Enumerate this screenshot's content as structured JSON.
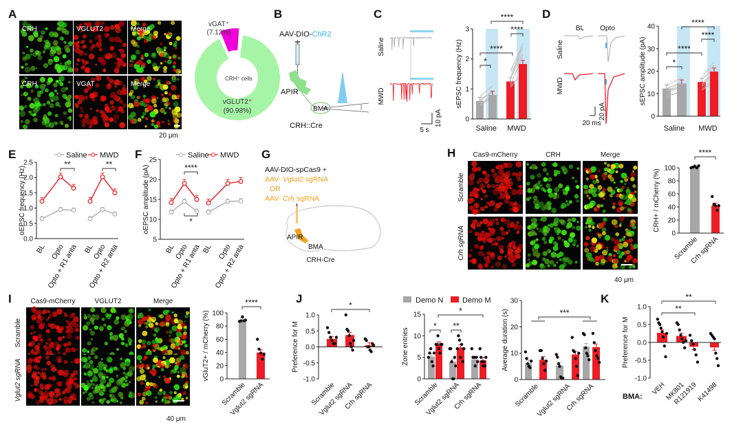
{
  "figure": {
    "panel_labels": [
      "A",
      "B",
      "C",
      "D",
      "E",
      "F",
      "G",
      "H",
      "I",
      "J",
      "K"
    ],
    "A": {
      "image_labels": [
        "CRH",
        "VGLUT2",
        "Merge",
        "CRH",
        "VGAT",
        "Merge"
      ],
      "scale_bar": "20 μm"
    },
    "B": {
      "virus_prefix": "AAV-DIO-",
      "virus_name": "ChR2",
      "region1": "APIR",
      "region2": "BMA",
      "mouse": "CRH::Cre"
    },
    "C": {
      "traces": [
        "Saline",
        "MWD"
      ],
      "scale_y": "10 pA",
      "scale_x": "5 s"
    },
    "D": {
      "conditions": [
        "BL",
        "Opto"
      ],
      "traces": [
        "Saline",
        "MWD"
      ],
      "scale_y": "20 pA",
      "scale_x": "20 ms"
    },
    "G": {
      "line1": "AAV-DIO-spCas9 +",
      "line2_prefix": "AAV- ",
      "line2_gene": "Vglut2",
      "line2_suffix": " sgRNA",
      "line3": "OR",
      "line4_prefix": "AAV- ",
      "line4_gene": "Crh",
      "line4_suffix": " sgRNA",
      "region1": "APIR",
      "region2": "BMA",
      "mouse": "CRH-Cre"
    },
    "H": {
      "col_labels": [
        "Cas9-mCherry",
        "CRH",
        "Merge"
      ],
      "row_labels": [
        "Scramble",
        "Crh sgRNA"
      ],
      "scale_bar": "40 μm"
    },
    "I": {
      "col_labels": [
        "Cas9-mCherry",
        "VGLUT2",
        "Merge"
      ],
      "row_labels": [
        "Scramble",
        "Vglut2 sgRNA"
      ],
      "scale_bar": "40 μm"
    },
    "K": {
      "x_prefix": "BMA:"
    }
  },
  "colors": {
    "gray": "#a7a7a9",
    "red": "#ee1c25",
    "opto_shade": "#c6e6f4",
    "chr2_blue": "#3bb4e5",
    "saline_line": "#b3b3b3",
    "mwd_line": "#e8262b",
    "vgat": "#f000d8",
    "vglut2": "#a6f5a6",
    "sgRNA_orange": "#f2a01e"
  },
  "chart_data": [
    {
      "panel": "A",
      "type": "pie",
      "center_label": "CRH⁺ cells",
      "slices": [
        {
          "label": "vGAT⁺",
          "percent_text": "(7.12%)",
          "value": 7.12
        },
        {
          "label": "vGLUT2⁺",
          "percent_text": "(90.98%)",
          "value": 90.98
        }
      ]
    },
    {
      "panel": "C",
      "type": "bar",
      "ylabel": "sEPSC frequency (Hz)",
      "categories": [
        "Saline",
        "MWD"
      ],
      "series": [
        {
          "name": "BL",
          "values": [
            0.6,
            1.25
          ]
        },
        {
          "name": "Opto",
          "values": [
            0.8,
            1.83
          ]
        }
      ],
      "ylim": [
        0,
        3
      ],
      "yticks": [
        "0",
        "1",
        "2",
        "3"
      ],
      "significance": [
        "*",
        "****",
        "****",
        "****"
      ]
    },
    {
      "panel": "D",
      "type": "bar",
      "ylabel": "sEPSC amplitude (pA)",
      "categories": [
        "Saline",
        "MWD"
      ],
      "series": [
        {
          "name": "BL",
          "values": [
            12.3,
            15.2
          ]
        },
        {
          "name": "Opto",
          "values": [
            14.5,
            19.8
          ]
        }
      ],
      "ylim": [
        0,
        40
      ],
      "yticks": [
        "0",
        "10",
        "20",
        "30",
        "40"
      ],
      "significance": [
        "*",
        "****",
        "****",
        "****"
      ]
    },
    {
      "panel": "E",
      "type": "line",
      "ylabel": "oEPSC frequency (Hz)",
      "categories": [
        "BL",
        "Opto",
        "Opto + R1 anta",
        "BL",
        "Opto",
        "Opto + R2 anta"
      ],
      "series": [
        {
          "name": "Saline",
          "values": [
            0.65,
            0.95,
            0.93,
            0.65,
            0.95,
            0.8
          ]
        },
        {
          "name": "MWD",
          "values": [
            1.22,
            2.02,
            1.65,
            1.22,
            2.02,
            1.5
          ]
        }
      ],
      "ylim": [
        0,
        2.5
      ],
      "yticks": [
        "0.0",
        "0.5",
        "1.0",
        "1.5",
        "2.0",
        "2.5"
      ],
      "significance": [
        "**",
        "**"
      ]
    },
    {
      "panel": "F",
      "type": "line",
      "ylabel": "oEPSC amplitude (pA)",
      "categories": [
        "BL",
        "Opto",
        "Opto + R1 anta",
        "BL",
        "Opto",
        "Opto + R2 anta"
      ],
      "series": [
        {
          "name": "Saline",
          "values": [
            11.8,
            14.5,
            12.0,
            11.8,
            14.5,
            14.6
          ]
        },
        {
          "name": "MWD",
          "values": [
            14.2,
            19.0,
            15.0,
            14.1,
            19.0,
            19.5
          ]
        }
      ],
      "ylim": [
        5,
        25
      ],
      "yticks": [
        "5",
        "10",
        "15",
        "20",
        "25"
      ],
      "significance": [
        "****",
        "*"
      ]
    },
    {
      "panel": "H",
      "type": "bar",
      "ylabel": "CRH+ / mCherry (%)",
      "categories": [
        "Scramble",
        "Crh sgRNA"
      ],
      "series": [
        {
          "name": "",
          "values": [
            101,
            42
          ],
          "points": [
            [
              100,
              101,
              102,
              100,
              103
            ],
            [
              56,
              44,
              42,
              35,
              42
            ]
          ]
        }
      ],
      "ylim": [
        0,
        100
      ],
      "yticks": [
        "0",
        "20",
        "40",
        "60",
        "80",
        "100"
      ],
      "significance": [
        "****"
      ]
    },
    {
      "panel": "I",
      "type": "bar",
      "ylabel": "vGluT2+ / mCherry (%)",
      "categories": [
        "Scramble",
        "Vglut2 sgRNA"
      ],
      "series": [
        {
          "name": "",
          "values": [
            88,
            40
          ],
          "points": [
            [
              87,
              88,
              94,
              88,
              89
            ],
            [
              60,
              45,
              39,
              30,
              37
            ]
          ]
        }
      ],
      "ylim": [
        0,
        100
      ],
      "yticks": [
        "0",
        "20",
        "40",
        "60",
        "80",
        "100"
      ],
      "significance": [
        "****"
      ]
    },
    {
      "panel": "J",
      "type": "bar",
      "ylabel": "Preference for M",
      "categories": [
        "Scramble",
        "Vglut2 sgRNA",
        "Crh sgRNA"
      ],
      "series": [
        {
          "name": "",
          "values": [
            0.25,
            0.37,
            0.05
          ],
          "points": [
            [
              0.6,
              0.45,
              0.3,
              0.2,
              0.1,
              0.1,
              0.3
            ],
            [
              1.0,
              0.55,
              0.5,
              0.35,
              0.1,
              0.0,
              -0.1,
              0.2
            ],
            [
              0.25,
              0.2,
              0.0,
              0.0,
              -0.1,
              -0.15,
              0.1,
              0.05
            ]
          ]
        }
      ],
      "ylim": [
        -1,
        1
      ],
      "yticks": [
        "-1.0",
        "-0.5",
        "0.0",
        "0.5",
        "1.0"
      ],
      "significance": [
        "*"
      ]
    },
    {
      "panel": "J",
      "type": "bar",
      "ylabel": "Zone entries",
      "categories": [
        "Scramble",
        "Vglut2 sgRNA",
        "Crh sgRNA"
      ],
      "series": [
        {
          "name": "Demo N",
          "values": [
            5.2,
            4.0,
            4.5
          ],
          "points": [
            [
              5,
              6,
              7,
              4,
              3,
              6
            ],
            [
              7,
              7,
              4,
              0,
              0,
              5,
              3
            ],
            [
              7,
              5,
              5,
              3,
              5,
              4
            ]
          ]
        },
        {
          "name": "Demo M",
          "values": [
            8.0,
            7.3,
            4.3
          ],
          "points": [
            [
              8,
              8,
              10,
              7,
              6,
              8,
              8
            ],
            [
              7,
              10,
              9,
              5,
              8,
              4,
              7
            ],
            [
              7,
              5,
              4,
              3,
              4,
              3,
              5
            ]
          ]
        }
      ],
      "ylim": [
        0,
        15
      ],
      "yticks": [
        "0",
        "5",
        "10",
        "15"
      ],
      "significance": [
        "*",
        "**",
        "*"
      ]
    },
    {
      "panel": "J",
      "type": "bar",
      "ylabel": "Average duration (s)",
      "categories": [
        "Scramble",
        "Vglut2 sgRNA",
        "Crh sgRNA"
      ],
      "series": [
        {
          "name": "Demo N",
          "values": [
            6.2,
            5.3,
            12.5
          ],
          "points": [
            [
              10.5,
              8,
              6,
              5,
              4.5,
              7
            ],
            [
              9.5,
              8.5,
              6,
              5,
              1,
              0.5,
              0.5
            ],
            [
              17.5,
              17,
              12,
              10,
              9,
              7.5
            ]
          ]
        },
        {
          "name": "Demo M",
          "values": [
            7.5,
            9.5,
            12.3
          ],
          "points": [
            [
              11,
              11,
              8,
              6,
              3.5,
              7
            ],
            [
              16,
              11,
              10.5,
              8,
              5,
              1.5,
              10
            ],
            [
              17.5,
              14,
              11,
              9,
              8,
              6.5
            ]
          ]
        }
      ],
      "ylim": [
        0,
        30
      ],
      "yticks": [
        "0",
        "10",
        "20",
        "30"
      ],
      "significance": [
        "***"
      ]
    },
    {
      "panel": "K",
      "type": "bar",
      "ylabel": "Preference for M",
      "categories": [
        "VEH",
        "MK801",
        "R121919",
        "K41498"
      ],
      "series": [
        {
          "name": "",
          "values": [
            0.27,
            0.18,
            -0.12,
            -0.14
          ],
          "points": [
            [
              0.65,
              0.55,
              0.5,
              0.4,
              0.3,
              0.15,
              -0.1,
              -0.4,
              0.25
            ],
            [
              0.55,
              0.5,
              0.35,
              0.2,
              0.1,
              0.0,
              -0.15,
              0.05
            ],
            [
              0.2,
              0.05,
              -0.05,
              -0.2,
              -0.35,
              -0.55
            ],
            [
              0.25,
              0.2,
              0.15,
              0.1,
              -0.3,
              -0.45,
              -0.65
            ]
          ]
        }
      ],
      "ylim": [
        -1,
        1
      ],
      "yticks": [
        "-1.0",
        "-0.5",
        "0.0",
        "0.5",
        "1.0"
      ],
      "significance": [
        "**",
        "**"
      ]
    }
  ]
}
